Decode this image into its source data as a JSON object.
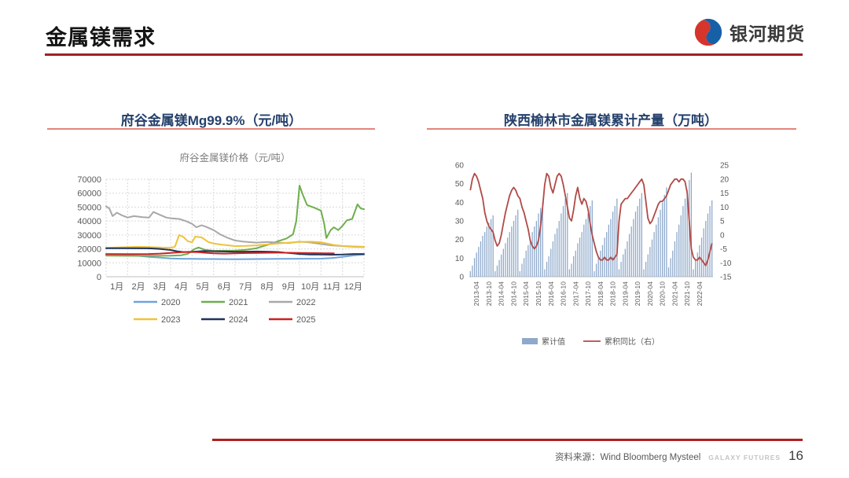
{
  "header": {
    "title": "金属镁需求",
    "logo_text": "银河期货",
    "logo_colors": {
      "red": "#d6352b",
      "blue": "#1660a8"
    }
  },
  "footer": {
    "source_label": "资料来源：Wind Bloomberg Mysteel",
    "brand": "GALAXY FUTURES",
    "page_number": "16"
  },
  "chart_data": [
    {
      "type": "line",
      "panel_title": "府谷金属镁Mg99.9%（元/吨）",
      "title": "府谷金属镁价格（元/吨）",
      "xlabel": "",
      "ylabel": "",
      "xlim": [
        1,
        13
      ],
      "ylim": [
        0,
        70000
      ],
      "grid": true,
      "legend_position": "bottom",
      "x_tick_labels": [
        "1月",
        "2月",
        "3月",
        "4月",
        "5月",
        "6月",
        "7月",
        "8月",
        "9月",
        "10月",
        "11月",
        "12月"
      ],
      "y_ticks": [
        0,
        10000,
        20000,
        30000,
        40000,
        50000,
        60000,
        70000
      ],
      "legend_rows": [
        [
          "2020",
          "2021",
          "2022"
        ],
        [
          "2023",
          "2024",
          "2025"
        ]
      ],
      "series": [
        {
          "name": "2020",
          "color": "#6fa3dc",
          "points": [
            [
              1,
              15800
            ],
            [
              1.5,
              15600
            ],
            [
              2,
              15300
            ],
            [
              2.5,
              15000
            ],
            [
              3,
              14300
            ],
            [
              3.5,
              13800
            ],
            [
              4,
              13100
            ],
            [
              4.5,
              12900
            ],
            [
              5,
              12800
            ],
            [
              6,
              12700
            ],
            [
              7,
              12600
            ],
            [
              8,
              12700
            ],
            [
              9,
              12800
            ],
            [
              10,
              12900
            ],
            [
              11,
              13000
            ],
            [
              11.5,
              13400
            ],
            [
              12,
              14200
            ],
            [
              12.5,
              15300
            ],
            [
              13,
              15900
            ]
          ]
        },
        {
          "name": "2021",
          "color": "#6fae4e",
          "points": [
            [
              1,
              15200
            ],
            [
              2,
              15000
            ],
            [
              3,
              15000
            ],
            [
              4,
              15100
            ],
            [
              4.5,
              15400
            ],
            [
              4.8,
              16500
            ],
            [
              5.1,
              19800
            ],
            [
              5.3,
              21000
            ],
            [
              5.6,
              19300
            ],
            [
              6,
              18600
            ],
            [
              6.5,
              18700
            ],
            [
              7,
              18800
            ],
            [
              7.5,
              19300
            ],
            [
              8,
              20500
            ],
            [
              8.5,
              22800
            ],
            [
              9,
              25500
            ],
            [
              9.4,
              27500
            ],
            [
              9.7,
              30500
            ],
            [
              9.85,
              40000
            ],
            [
              10,
              65500
            ],
            [
              10.15,
              59000
            ],
            [
              10.35,
              51500
            ],
            [
              10.7,
              49500
            ],
            [
              11,
              47500
            ],
            [
              11.15,
              38000
            ],
            [
              11.25,
              27800
            ],
            [
              11.45,
              33500
            ],
            [
              11.6,
              35500
            ],
            [
              11.8,
              33500
            ],
            [
              12,
              36500
            ],
            [
              12.2,
              40500
            ],
            [
              12.45,
              41500
            ],
            [
              12.7,
              52000
            ],
            [
              12.85,
              49000
            ],
            [
              13,
              48500
            ]
          ]
        },
        {
          "name": "2022",
          "color": "#a8a8a8",
          "points": [
            [
              1,
              50500
            ],
            [
              1.15,
              49000
            ],
            [
              1.3,
              43500
            ],
            [
              1.5,
              46000
            ],
            [
              1.75,
              44000
            ],
            [
              2,
              42500
            ],
            [
              2.3,
              43500
            ],
            [
              2.7,
              42800
            ],
            [
              3,
              42500
            ],
            [
              3.2,
              46500
            ],
            [
              3.5,
              44500
            ],
            [
              3.8,
              42500
            ],
            [
              4,
              42000
            ],
            [
              4.4,
              41500
            ],
            [
              4.7,
              40000
            ],
            [
              5,
              38000
            ],
            [
              5.2,
              35500
            ],
            [
              5.45,
              37000
            ],
            [
              5.7,
              35500
            ],
            [
              6,
              33500
            ],
            [
              6.3,
              30500
            ],
            [
              6.6,
              28300
            ],
            [
              7,
              26000
            ],
            [
              7.4,
              25200
            ],
            [
              8,
              24500
            ],
            [
              8.5,
              25000
            ],
            [
              9,
              24500
            ],
            [
              9.5,
              24200
            ],
            [
              10,
              25200
            ],
            [
              10.4,
              24800
            ],
            [
              10.8,
              24000
            ],
            [
              11,
              23500
            ],
            [
              11.5,
              22500
            ],
            [
              12,
              22000
            ],
            [
              12.5,
              21500
            ],
            [
              13,
              21300
            ]
          ]
        },
        {
          "name": "2023",
          "color": "#efc33a",
          "points": [
            [
              1,
              20800
            ],
            [
              1.5,
              21000
            ],
            [
              2,
              21200
            ],
            [
              2.5,
              21500
            ],
            [
              3,
              21300
            ],
            [
              3.5,
              21000
            ],
            [
              4,
              20800
            ],
            [
              4.2,
              21500
            ],
            [
              4.4,
              30000
            ],
            [
              4.6,
              28500
            ],
            [
              4.8,
              25500
            ],
            [
              5,
              24800
            ],
            [
              5.15,
              28800
            ],
            [
              5.45,
              28200
            ],
            [
              5.75,
              25000
            ],
            [
              6,
              23800
            ],
            [
              6.4,
              23000
            ],
            [
              6.7,
              22500
            ],
            [
              7,
              22000
            ],
            [
              7.5,
              22200
            ],
            [
              8,
              22500
            ],
            [
              8.5,
              23200
            ],
            [
              9,
              23800
            ],
            [
              9.5,
              24500
            ],
            [
              10,
              25000
            ],
            [
              10.5,
              25200
            ],
            [
              11,
              24800
            ],
            [
              11.3,
              23800
            ],
            [
              11.6,
              22800
            ],
            [
              12,
              22200
            ],
            [
              12.5,
              21800
            ],
            [
              13,
              21500
            ]
          ]
        },
        {
          "name": "2024",
          "color": "#1f3459",
          "points": [
            [
              1,
              20500
            ],
            [
              2,
              20500
            ],
            [
              3,
              20400
            ],
            [
              3.5,
              20000
            ],
            [
              4,
              19200
            ],
            [
              4.3,
              18300
            ],
            [
              4.6,
              17700
            ],
            [
              5,
              17900
            ],
            [
              5.5,
              18400
            ],
            [
              6,
              18300
            ],
            [
              6.5,
              18100
            ],
            [
              7,
              17900
            ],
            [
              7.5,
              18000
            ],
            [
              8,
              18100
            ],
            [
              8.5,
              18000
            ],
            [
              9,
              17800
            ],
            [
              9.3,
              17300
            ],
            [
              9.7,
              16800
            ],
            [
              10,
              16300
            ],
            [
              10.5,
              16000
            ],
            [
              11,
              15900
            ],
            [
              11.5,
              15800
            ],
            [
              12,
              15900
            ],
            [
              12.5,
              16300
            ],
            [
              13,
              16300
            ]
          ]
        },
        {
          "name": "2025",
          "color": "#cc2222",
          "points": [
            [
              1,
              16300
            ],
            [
              2,
              16200
            ],
            [
              2.5,
              16200
            ],
            [
              3,
              16300
            ],
            [
              3.5,
              16600
            ],
            [
              4,
              17100
            ],
            [
              4.5,
              17600
            ],
            [
              5,
              17800
            ],
            [
              5.3,
              17600
            ],
            [
              5.6,
              17200
            ],
            [
              6,
              16800
            ],
            [
              6.5,
              16600
            ],
            [
              7,
              16800
            ],
            [
              7.5,
              17000
            ],
            [
              8,
              17100
            ],
            [
              8.5,
              17200
            ],
            [
              9,
              17300
            ],
            [
              9.5,
              17200
            ],
            [
              10,
              17100
            ],
            [
              10.5,
              17000
            ],
            [
              11,
              16900
            ],
            [
              11.6,
              16800
            ]
          ]
        }
      ]
    },
    {
      "type": "bar",
      "panel_title": "陕西榆林市金属镁累计产量（万吨）",
      "title": "",
      "legend_position": "bottom",
      "left_axis": {
        "lim": [
          0,
          60
        ],
        "ticks": [
          0,
          10,
          20,
          30,
          40,
          50,
          60
        ]
      },
      "right_axis": {
        "lim": [
          -15,
          25
        ],
        "ticks": [
          -15,
          -10,
          -5,
          0,
          5,
          10,
          15,
          20,
          25
        ]
      },
      "x_start": "2013-01",
      "x_tick_first_index": 3,
      "x_tick_step": 6,
      "x_tick_labels": [
        "2013-04",
        "2013-10",
        "2014-04",
        "2014-10",
        "2015-04",
        "2015-10",
        "2016-04",
        "2016-10",
        "2017-04",
        "2017-10",
        "2018-04",
        "2018-10",
        "2019-04",
        "2019-10",
        "2020-04",
        "2020-10",
        "2021-04",
        "2021-10",
        "2022-04"
      ],
      "bars": {
        "name": "累计值",
        "color": "#8ea9cb",
        "values": [
          3,
          6,
          10,
          13,
          16,
          19,
          22,
          24,
          27,
          29,
          31,
          33,
          3,
          6,
          9,
          12,
          15,
          18,
          21,
          24,
          27,
          30,
          33,
          36,
          3,
          7,
          10,
          14,
          17,
          20,
          24,
          27,
          30,
          34,
          37,
          40,
          4,
          8,
          11,
          15,
          19,
          23,
          26,
          30,
          34,
          38,
          42,
          45,
          4,
          7,
          11,
          14,
          18,
          21,
          24,
          28,
          31,
          34,
          38,
          41,
          3,
          7,
          10,
          14,
          17,
          21,
          24,
          28,
          31,
          35,
          38,
          42,
          4,
          8,
          12,
          15,
          19,
          23,
          27,
          31,
          35,
          38,
          42,
          45,
          4,
          8,
          12,
          16,
          20,
          24,
          28,
          32,
          36,
          40,
          44,
          48,
          5,
          10,
          14,
          19,
          24,
          28,
          33,
          38,
          42,
          47,
          52,
          56,
          4,
          9,
          13,
          17,
          21,
          26,
          30,
          34,
          38,
          41
        ]
      },
      "line": {
        "name": "累积同比（右）",
        "color": "#b04a47",
        "values": [
          16,
          20,
          22,
          21,
          19,
          16,
          13,
          8,
          5,
          3,
          2,
          1,
          -2,
          -4,
          -3,
          0,
          4,
          8,
          11,
          14,
          16,
          17,
          16,
          14,
          13,
          10,
          8,
          5,
          2,
          -2,
          -4,
          -5,
          -4,
          -2,
          3,
          10,
          18,
          22,
          21,
          17,
          15,
          18,
          21,
          22,
          21,
          18,
          14,
          10,
          6,
          5,
          9,
          14,
          17,
          13,
          11,
          13,
          12,
          9,
          4,
          0,
          -3,
          -6,
          -8,
          -9,
          -9,
          -8,
          -9,
          -9,
          -8,
          -9,
          -8,
          -7,
          5,
          11,
          12,
          13,
          13,
          14,
          15,
          16,
          17,
          18,
          19,
          20,
          18,
          12,
          6,
          4,
          5,
          7,
          9,
          11,
          12,
          12,
          13,
          14,
          16,
          18,
          19,
          20,
          20,
          19,
          20,
          20,
          19,
          15,
          5,
          -5,
          -8,
          -9,
          -9,
          -8,
          -9,
          -10,
          -11,
          -9,
          -6,
          -3
        ]
      }
    }
  ]
}
